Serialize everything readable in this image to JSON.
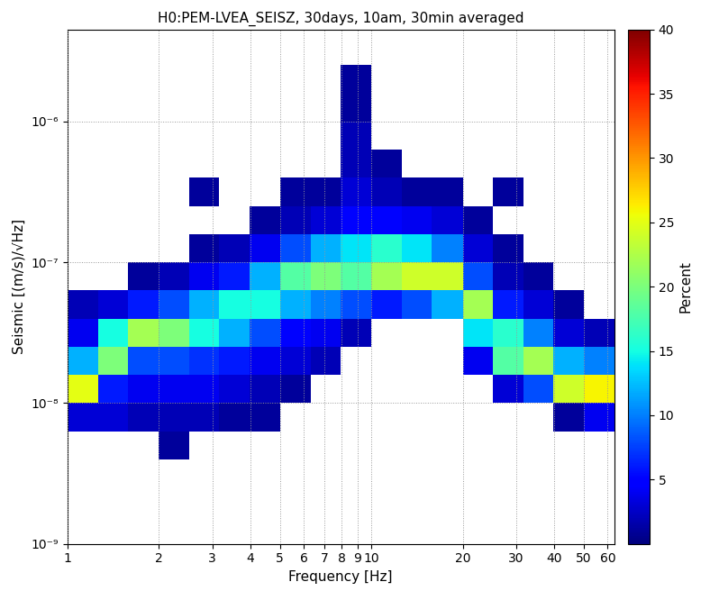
{
  "chart_data": {
    "type": "heatmap",
    "title": "H0:PEM-LVEA_SEISZ, 30days, 10am, 30min averaged",
    "x_label": "Frequency [Hz]",
    "y_label": "Seismic [(m/s)/√Hz]",
    "log": true,
    "grid": true,
    "xlim": [
      1,
      63
    ],
    "ylim": [
      1e-09,
      4.5e-06
    ],
    "xticks": [
      1,
      2,
      3,
      4,
      5,
      6,
      7,
      8,
      9,
      10,
      20,
      30,
      40,
      50,
      60
    ],
    "yticks": [
      {
        "value": 1e-09,
        "label": "10⁻⁹"
      },
      {
        "value": 1e-08,
        "label": "10⁻⁸"
      },
      {
        "value": 1e-07,
        "label": "10⁻⁷"
      },
      {
        "value": 1e-06,
        "label": "10⁻⁶"
      }
    ],
    "x_bins": [
      1,
      1.26,
      1.58,
      2,
      2.51,
      3.16,
      3.98,
      5.01,
      6.31,
      7.94,
      10,
      12.6,
      15.8,
      20,
      25.1,
      31.6,
      39.8,
      50.1,
      63.1
    ],
    "y_bins": [
      1e-09,
      1.58e-09,
      2.51e-09,
      3.98e-09,
      6.31e-09,
      1e-08,
      1.58e-08,
      2.51e-08,
      3.98e-08,
      6.31e-08,
      1e-07,
      1.58e-07,
      2.51e-07,
      3.98e-07,
      6.31e-07,
      1e-06,
      1.58e-06,
      2.51e-06
    ],
    "cells": [
      [
        0,
        0,
        0,
        0,
        0,
        0,
        0,
        0,
        0,
        0,
        0,
        0,
        0,
        0,
        0,
        0,
        0,
        0
      ],
      [
        0,
        0,
        0,
        0,
        0,
        0,
        0,
        0,
        0,
        0,
        0,
        0,
        0,
        0,
        0,
        0,
        0,
        0
      ],
      [
        0,
        0,
        0,
        0,
        0,
        0,
        0,
        0,
        0,
        0,
        0,
        0,
        0,
        0,
        0,
        0,
        0,
        0
      ],
      [
        0,
        0,
        0,
        1,
        0,
        0,
        0,
        0,
        0,
        0,
        0,
        0,
        0,
        0,
        0,
        0,
        0,
        0
      ],
      [
        3,
        3,
        2,
        2,
        2,
        1,
        1,
        0,
        0,
        0,
        0,
        0,
        0,
        0,
        0,
        0,
        1,
        4
      ],
      [
        25,
        6,
        4,
        4,
        4,
        3,
        2,
        1,
        0,
        0,
        0,
        0,
        0,
        0,
        3,
        8,
        24,
        26
      ],
      [
        12,
        20,
        8,
        8,
        7,
        6,
        4,
        3,
        2,
        0,
        0,
        0,
        0,
        4,
        18,
        22,
        12,
        10
      ],
      [
        4,
        15,
        22,
        20,
        15,
        12,
        8,
        5,
        4,
        2,
        0,
        0,
        0,
        14,
        16,
        10,
        3,
        2
      ],
      [
        2,
        3,
        6,
        8,
        12,
        15,
        15,
        12,
        10,
        8,
        6,
        8,
        12,
        22,
        6,
        3,
        1,
        0
      ],
      [
        0,
        0,
        1,
        2,
        4,
        6,
        12,
        18,
        20,
        18,
        22,
        24,
        24,
        8,
        2,
        1,
        0,
        0
      ],
      [
        0,
        0,
        0,
        0,
        1,
        2,
        4,
        8,
        12,
        14,
        16,
        14,
        10,
        3,
        1,
        0,
        0,
        0
      ],
      [
        0,
        0,
        0,
        0,
        0,
        0,
        1,
        2,
        3,
        5,
        5,
        4,
        3,
        1,
        0,
        0,
        0,
        0
      ],
      [
        0,
        0,
        0,
        0,
        1,
        0,
        0,
        1,
        1,
        3,
        2,
        1,
        1,
        0,
        1,
        0,
        0,
        0
      ],
      [
        0,
        0,
        0,
        0,
        0,
        0,
        0,
        0,
        0,
        2,
        1,
        0,
        0,
        0,
        0,
        0,
        0,
        0
      ],
      [
        0,
        0,
        0,
        0,
        0,
        0,
        0,
        0,
        0,
        2,
        0,
        0,
        0,
        0,
        0,
        0,
        0,
        0
      ],
      [
        0,
        0,
        0,
        0,
        0,
        0,
        0,
        0,
        0,
        1,
        0,
        0,
        0,
        0,
        0,
        0,
        0,
        0
      ],
      [
        0,
        0,
        0,
        0,
        0,
        0,
        0,
        0,
        0,
        1,
        0,
        0,
        0,
        0,
        0,
        0,
        0,
        0
      ]
    ],
    "colorbar_range": [
      0,
      40
    ],
    "colorbar_ticks": [
      5,
      10,
      15,
      20,
      25,
      30,
      35,
      40
    ],
    "colorbar_label": "Percent"
  }
}
